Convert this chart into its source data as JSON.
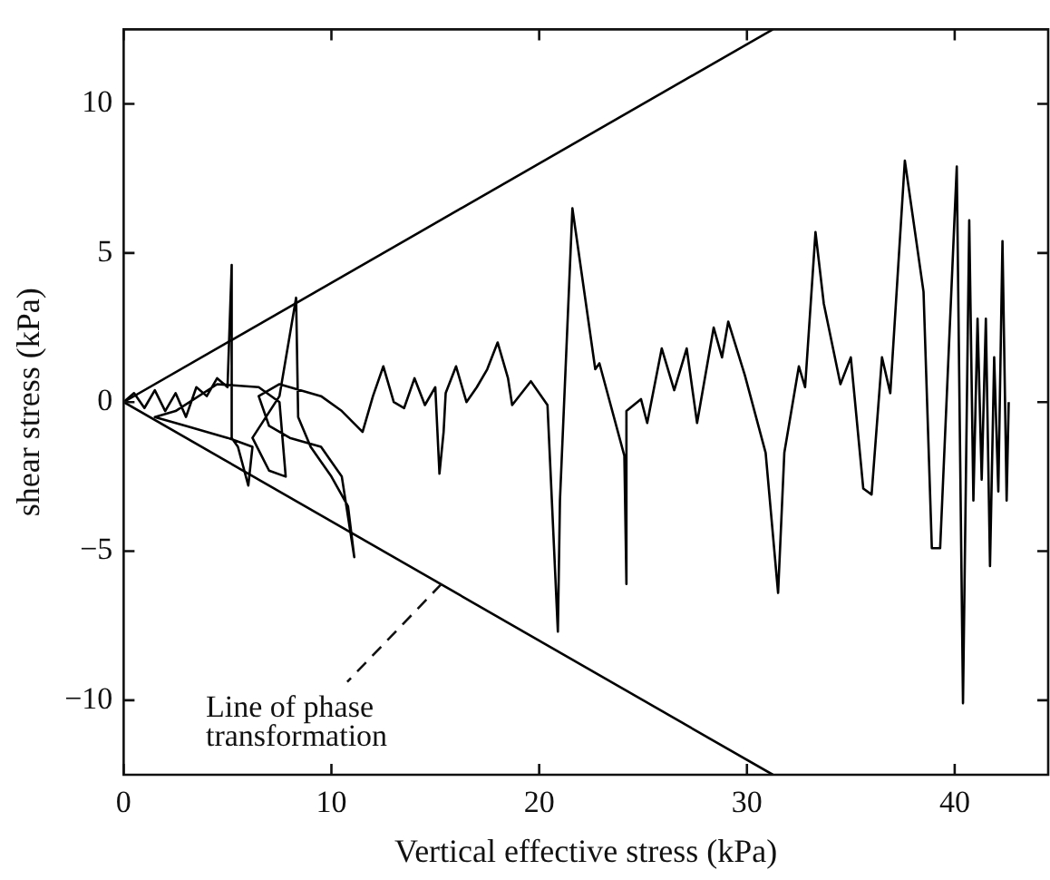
{
  "chart_data": {
    "type": "line",
    "xlabel": "Vertical effective stress (kPa)",
    "ylabel": "shear stress (kPa)",
    "xlim": [
      0,
      44.5
    ],
    "ylim": [
      -12.5,
      12.5
    ],
    "xticks": [
      0,
      10,
      20,
      30,
      40
    ],
    "yticks": [
      -10,
      -5,
      0,
      5,
      10
    ],
    "grid": false,
    "legend": false,
    "marker": "none",
    "line_style": "solid",
    "annotations": [
      {
        "text": "Line of phase transformation",
        "x": 15.3,
        "y": -6.1
      }
    ],
    "series": [
      {
        "color": "#000000",
        "x": [
          0,
          31.25
        ],
        "values": [
          0,
          12.5
        ]
      },
      {
        "color": "#000000",
        "x": [
          0,
          31.25
        ],
        "values": [
          0,
          -12.5
        ]
      },
      {
        "color": "#000000",
        "x": [
          0,
          0.5,
          1,
          1.5,
          2,
          2.5,
          3,
          3.5,
          4,
          4.5,
          5,
          5.2,
          5.2,
          5.5,
          6,
          6.2,
          5,
          3,
          1.5,
          2.5,
          4.5,
          6.5,
          7.5,
          7.8,
          7,
          6.2,
          7.5,
          8.3,
          8.4,
          9,
          10,
          10.8,
          11.1,
          10.5,
          9.5,
          8,
          7,
          6.5,
          7.5,
          9.5,
          10.5,
          11.5,
          12,
          12.5,
          13,
          13.5,
          14,
          14.5,
          15,
          15.2,
          15.4,
          15.5,
          16,
          16.5,
          17,
          17.5,
          18,
          18.5,
          18.7,
          19.6,
          20.4,
          20.9,
          21,
          21.6,
          22.7,
          22.9,
          24.1,
          24.2,
          24.2,
          24.9,
          25.2,
          25.9,
          26.5,
          27.1,
          27.6,
          28.4,
          28.8,
          29.1,
          29.9,
          30.9,
          31.5,
          31.8,
          32.5,
          32.8,
          33.3,
          33.7,
          34.5,
          35,
          35.6,
          36,
          36.5,
          36.9,
          37.6,
          38.5,
          38.9,
          39.3,
          40.1,
          40.4,
          40.7,
          40.9,
          41.1,
          41.3,
          41.5,
          41.7,
          41.9,
          42.1,
          42.3,
          42.5,
          42.6
        ],
        "values": [
          0,
          0.3,
          -0.2,
          0.4,
          -0.3,
          0.3,
          -0.5,
          0.5,
          0.2,
          0.8,
          0.5,
          4.6,
          -1.2,
          -1.5,
          -2.8,
          -1.5,
          -1.2,
          -0.8,
          -0.5,
          -0.3,
          0.6,
          0.5,
          0,
          -2.5,
          -2.3,
          -1.2,
          0.2,
          3.5,
          -0.5,
          -1.5,
          -2.5,
          -3.5,
          -5.2,
          -2.5,
          -1.5,
          -1.2,
          -0.8,
          0.2,
          0.6,
          0.2,
          -0.3,
          -1,
          0.2,
          1.2,
          0,
          -0.2,
          0.8,
          -0.1,
          0.5,
          -2.4,
          -1,
          0.3,
          1.2,
          0,
          0.5,
          1.1,
          2,
          0.8,
          -0.1,
          0.7,
          -0.1,
          -7.7,
          -3.3,
          6.5,
          1.1,
          1.3,
          -1.8,
          -6.1,
          -0.3,
          0.1,
          -0.7,
          1.8,
          0.4,
          1.8,
          -0.7,
          2.5,
          1.5,
          2.7,
          0.9,
          -1.7,
          -6.4,
          -1.7,
          1.2,
          0.5,
          5.7,
          3.3,
          0.6,
          1.5,
          -2.9,
          -3.1,
          1.5,
          0.3,
          8.1,
          3.7,
          -4.9,
          -4.9,
          7.9,
          -10.1,
          6.1,
          -3.3,
          2.8,
          -2.6,
          2.8,
          -5.5,
          1.5,
          -3,
          5.4,
          -3.3,
          0
        ]
      }
    ]
  }
}
